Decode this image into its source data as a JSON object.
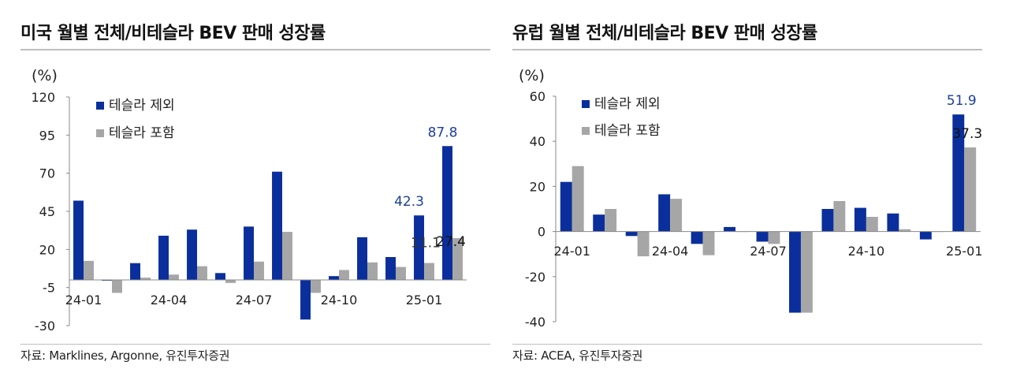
{
  "colors": {
    "series1": "#0a2f9c",
    "series2": "#a6a6a6",
    "axis": "#888888",
    "label_blue": "#1b3f9a",
    "label_dark": "#111111"
  },
  "charts": [
    {
      "title": "미국 월별 전체/비테슬라 BEV 판매 성장률",
      "unit": "(%)",
      "source": "자료: Marklines, Argonne, 유진투자증권"
    },
    {
      "title": "유럽 월별 전체/비테슬라 BEV 판매 성장률",
      "unit": "(%)",
      "source": "자료: ACEA, 유진투자증권"
    }
  ],
  "chart_data": [
    {
      "type": "bar",
      "title": "미국 월별 전체/비테슬라 BEV 판매 성장률",
      "ylabel": "(%)",
      "ylim": [
        -30,
        120
      ],
      "yticks": [
        -30,
        -5,
        20,
        45,
        70,
        95,
        120
      ],
      "categories": [
        "24-01",
        "24-02",
        "24-03",
        "24-04",
        "24-05",
        "24-06",
        "24-07",
        "24-08",
        "24-09",
        "24-10",
        "24-11",
        "24-12",
        "25-01",
        "25-02"
      ],
      "xtick_labels": [
        "24-01",
        "24-04",
        "24-07",
        "24-10",
        "25-01"
      ],
      "xtick_indices": [
        0,
        3,
        6,
        9,
        12
      ],
      "series": [
        {
          "name": "테슬라 제외",
          "values": [
            52,
            -0.5,
            11,
            29,
            33,
            4.5,
            35,
            71,
            -26,
            2.5,
            28,
            15,
            42.3,
            87.8
          ]
        },
        {
          "name": "테슬라 포함",
          "values": [
            12.5,
            -8.5,
            1.5,
            3.5,
            9,
            -2,
            12,
            31.5,
            -8.5,
            6.5,
            11.5,
            8.5,
            11.1,
            27.4
          ]
        }
      ],
      "annotations": [
        {
          "text": "87.8",
          "category_index": 13,
          "series": 0,
          "style": "blue"
        },
        {
          "text": "42.3",
          "category_index": 12,
          "series": 0,
          "style": "blue"
        },
        {
          "text": "27.4",
          "category_index": 13,
          "series": 1,
          "style": "dark"
        },
        {
          "text": "11.1",
          "category_index": 12,
          "series": 1,
          "style": "gray"
        }
      ],
      "legend": "top-left"
    },
    {
      "type": "bar",
      "title": "유럽 월별 전체/비테슬라 BEV 판매 성장률",
      "ylabel": "(%)",
      "ylim": [
        -40,
        60
      ],
      "yticks": [
        -40,
        -20,
        0,
        20,
        40,
        60
      ],
      "categories": [
        "24-01",
        "24-02",
        "24-03",
        "24-04",
        "24-05",
        "24-06",
        "24-07",
        "24-08",
        "24-09",
        "24-10",
        "24-11",
        "24-12",
        "25-01"
      ],
      "xtick_labels": [
        "24-01",
        "24-04",
        "24-07",
        "24-10",
        "25-01"
      ],
      "xtick_indices": [
        0,
        3,
        6,
        9,
        12
      ],
      "series": [
        {
          "name": "테슬라 제외",
          "values": [
            22,
            7.5,
            -2,
            16.5,
            -5.5,
            2,
            -4.5,
            -36,
            10,
            10.5,
            8,
            -3.5,
            51.9
          ]
        },
        {
          "name": "테슬라 포함",
          "values": [
            29,
            10,
            -11,
            14.5,
            -10.5,
            0,
            -5.5,
            -36,
            13.5,
            6.5,
            1,
            0,
            37.3
          ]
        }
      ],
      "annotations": [
        {
          "text": "51.9",
          "category_index": 12,
          "series": 0,
          "style": "blue"
        },
        {
          "text": "37.3",
          "category_index": 12,
          "series": 1,
          "style": "dark"
        }
      ],
      "legend": "top-left"
    }
  ]
}
